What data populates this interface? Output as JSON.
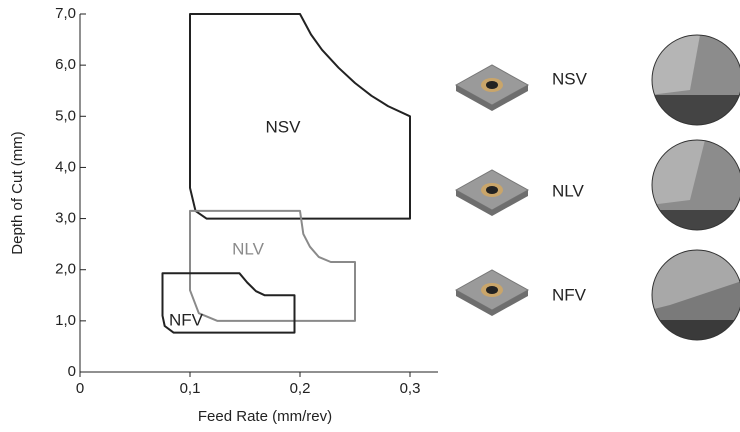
{
  "chart_data": {
    "type": "region",
    "x_label": "Feed Rate (mm/rev)",
    "y_label": "Depth of Cut (mm)",
    "xlim": [
      0,
      0.325
    ],
    "ylim": [
      0,
      7
    ],
    "xticks": [
      0,
      {
        "value": 0.1,
        "label": "0,1"
      },
      {
        "value": 0.2,
        "label": "0,2"
      },
      {
        "value": 0.3,
        "label": "0,3"
      }
    ],
    "yticks": [
      0,
      {
        "value": 1,
        "label": "1,0"
      },
      {
        "value": 2,
        "label": "2,0"
      },
      {
        "value": 3,
        "label": "3,0"
      },
      {
        "value": 4,
        "label": "4,0"
      },
      {
        "value": 5,
        "label": "5,0"
      },
      {
        "value": 6,
        "label": "6,0"
      },
      {
        "value": 7,
        "label": "7,0"
      }
    ],
    "series": [
      {
        "name": "NSV",
        "color": "#222222",
        "x": [
          0.1,
          0.2,
          0.21,
          0.22,
          0.235,
          0.25,
          0.265,
          0.28,
          0.3,
          0.3,
          0.115,
          0.105,
          0.1
        ],
        "y": [
          7,
          7,
          6.6,
          6.3,
          5.95,
          5.65,
          5.4,
          5.2,
          5.0,
          3.0,
          3.0,
          3.15,
          3.6
        ]
      },
      {
        "name": "NLV",
        "color": "#8a8a8a",
        "x": [
          0.1,
          0.2,
          0.203,
          0.209,
          0.217,
          0.228,
          0.25,
          0.25,
          0.125,
          0.108,
          0.1
        ],
        "y": [
          3.15,
          3.15,
          2.7,
          2.45,
          2.25,
          2.15,
          2.15,
          1.0,
          1.0,
          1.15,
          1.6
        ]
      },
      {
        "name": "NFV",
        "color": "#222222",
        "x": [
          0.075,
          0.145,
          0.152,
          0.16,
          0.168,
          0.195,
          0.195,
          0.085,
          0.077,
          0.075
        ],
        "y": [
          1.93,
          1.93,
          1.75,
          1.58,
          1.5,
          1.5,
          0.77,
          0.77,
          0.9,
          1.1
        ]
      }
    ]
  }
}
